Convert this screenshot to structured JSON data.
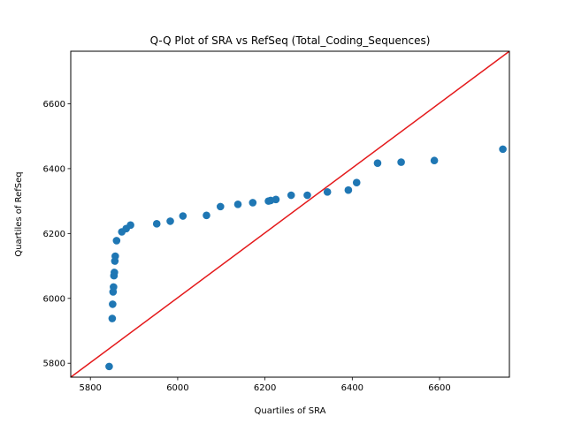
{
  "chart_data": {
    "type": "scatter",
    "title": "Q-Q Plot of SRA vs RefSeq (Total_Coding_Sequences)",
    "xlabel": "Quartiles of SRA",
    "ylabel": "Quartiles of RefSeq",
    "xlim": [
      5755,
      6760
    ],
    "ylim": [
      5757,
      6762
    ],
    "xticks": [
      5800,
      6000,
      6200,
      6400,
      6600
    ],
    "yticks": [
      5800,
      6000,
      6200,
      6400,
      6600
    ],
    "grid": false,
    "point_color": "#1f77b4",
    "reference_line": {
      "color": "#e41a1c",
      "from": [
        5755,
        5757
      ],
      "to": [
        6760,
        6762
      ]
    },
    "points": [
      [
        5843,
        5790
      ],
      [
        5850,
        5938
      ],
      [
        5851,
        5982
      ],
      [
        5852,
        6020
      ],
      [
        5853,
        6035
      ],
      [
        5854,
        6070
      ],
      [
        5855,
        6080
      ],
      [
        5856,
        6115
      ],
      [
        5857,
        6130
      ],
      [
        5860,
        6178
      ],
      [
        5872,
        6205
      ],
      [
        5882,
        6215
      ],
      [
        5892,
        6226
      ],
      [
        5952,
        6230
      ],
      [
        5983,
        6238
      ],
      [
        6012,
        6254
      ],
      [
        6066,
        6256
      ],
      [
        6098,
        6283
      ],
      [
        6138,
        6290
      ],
      [
        6172,
        6295
      ],
      [
        6208,
        6300
      ],
      [
        6213,
        6302
      ],
      [
        6225,
        6305
      ],
      [
        6260,
        6318
      ],
      [
        6297,
        6318
      ],
      [
        6343,
        6328
      ],
      [
        6391,
        6334
      ],
      [
        6410,
        6357
      ],
      [
        6458,
        6417
      ],
      [
        6512,
        6420
      ],
      [
        6588,
        6425
      ],
      [
        6745,
        6460
      ]
    ]
  }
}
